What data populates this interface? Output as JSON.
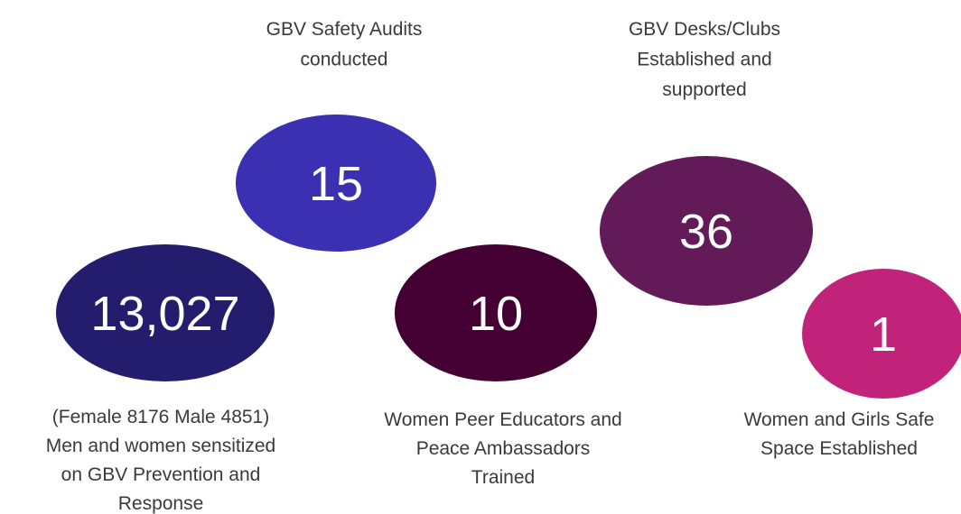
{
  "items": [
    {
      "value": "13,027",
      "color": "#241c6c",
      "caption": [
        "(Female 8176 Male 4851)",
        "Men and women sensitized",
        "on GBV Prevention and",
        "Response"
      ]
    },
    {
      "value": "15",
      "color": "#3a30b1",
      "caption": [
        "GBV Safety Audits",
        "conducted"
      ]
    },
    {
      "value": "10",
      "color": "#450033",
      "caption": [
        "Women Peer Educators and",
        "Peace Ambassadors",
        "Trained"
      ]
    },
    {
      "value": "36",
      "color": "#631a58",
      "caption": [
        "GBV Desks/Clubs",
        "Established and",
        "supported"
      ]
    },
    {
      "value": "1",
      "color": "#c1237b",
      "caption": [
        "Women and Girls Safe",
        "Space Established"
      ]
    }
  ]
}
